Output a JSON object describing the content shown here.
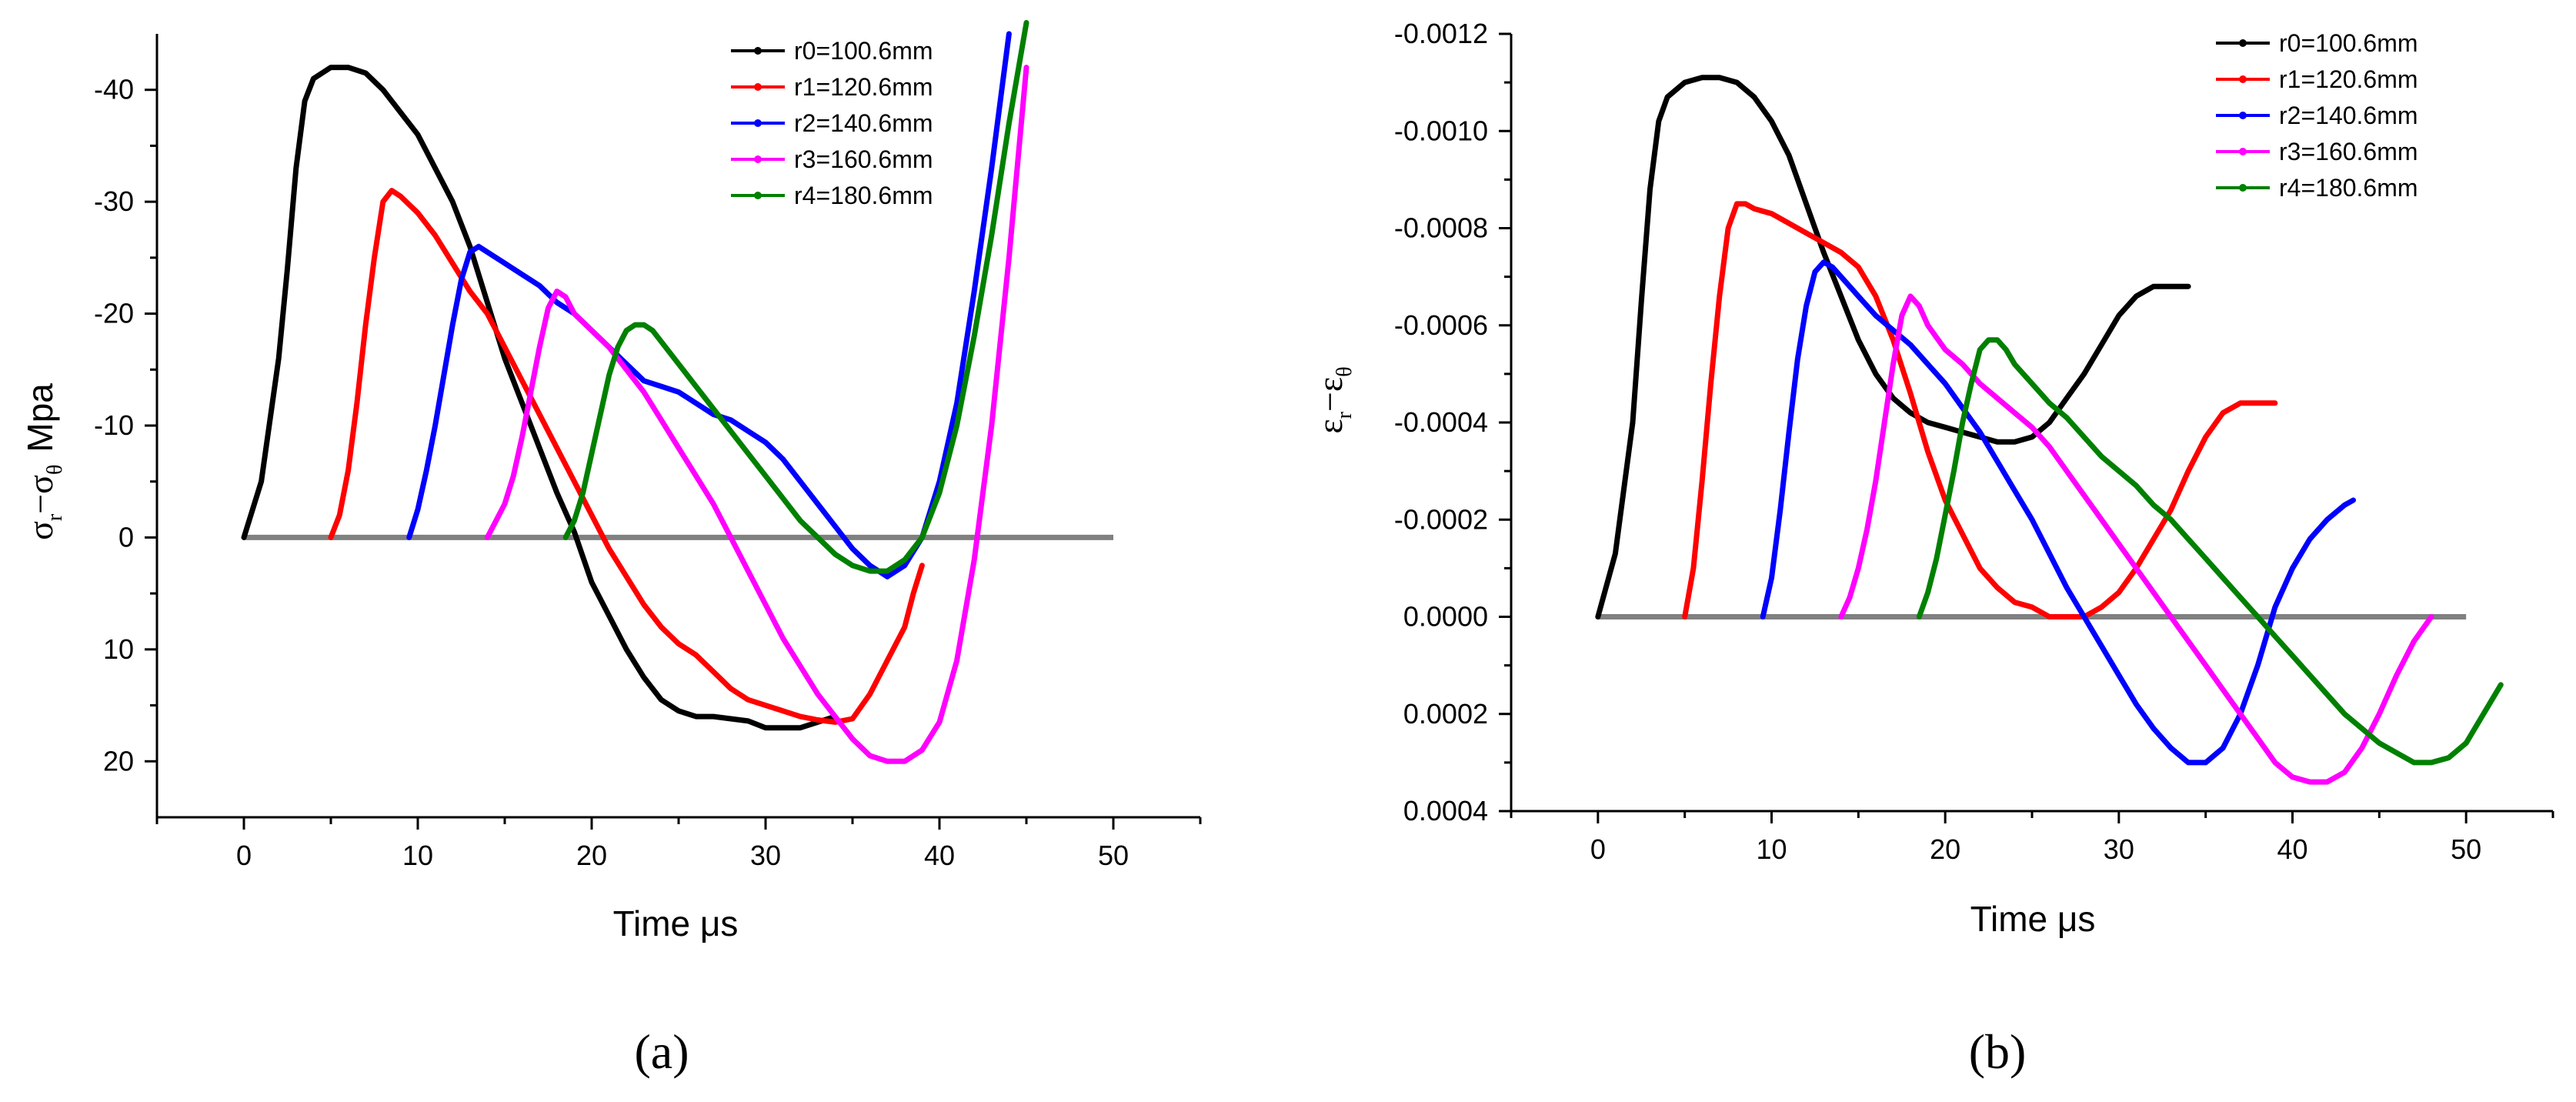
{
  "colors": {
    "r0": "#000000",
    "r1": "#ff0000",
    "r2": "#0000ff",
    "r3": "#ff00ff",
    "r4": "#008000",
    "baseline": "#808080"
  },
  "chart_data": [
    {
      "type": "line",
      "panel_label": "(a)",
      "xlabel": "Time  μs",
      "ylabel": "σr−σθ  Mpa",
      "ylabel_parts": {
        "main1": "σ",
        "sub1": "r",
        "dash": "−",
        "main2": "σ",
        "sub2": "θ",
        "unit": "Mpa"
      },
      "xlim": [
        -5,
        55
      ],
      "ylim": [
        25,
        -45
      ],
      "xticks": [
        0,
        10,
        20,
        30,
        40,
        50
      ],
      "xtick_labels": [
        "0",
        "10",
        "20",
        "30",
        "40",
        "50"
      ],
      "yticks": [
        -40,
        -30,
        -20,
        -10,
        0,
        10,
        20
      ],
      "ytick_labels": [
        "-40",
        "-30",
        "-20",
        "-10",
        "0",
        "10",
        "20"
      ],
      "baseline": {
        "x": [
          0,
          50
        ],
        "y": 0
      },
      "series": [
        {
          "name": "r0=100.6mm",
          "color": "#000000",
          "x": [
            0,
            1,
            2,
            2.5,
            3,
            3.5,
            4,
            5,
            6,
            7,
            8,
            9,
            10,
            11,
            12,
            13,
            14,
            15,
            16,
            17,
            18,
            19,
            20,
            21,
            22,
            23,
            24,
            25,
            26,
            27,
            28,
            29,
            30,
            31,
            32,
            33,
            34
          ],
          "y": [
            0,
            -5,
            -16,
            -24,
            -33,
            -39,
            -41,
            -42,
            -42,
            -41.5,
            -40,
            -38,
            -36,
            -33,
            -30,
            -26,
            -21,
            -16,
            -12,
            -8,
            -4,
            -0.5,
            4,
            7,
            10,
            12.5,
            14.5,
            15.5,
            16,
            16,
            16.2,
            16.4,
            17,
            17,
            17,
            16.5,
            16
          ]
        },
        {
          "name": "r1=120.6mm",
          "color": "#ff0000",
          "x": [
            5,
            5.5,
            6,
            6.5,
            7,
            7.5,
            8,
            8.5,
            9,
            10,
            11,
            12,
            13,
            14,
            15,
            16,
            17,
            18,
            19,
            20,
            21,
            22,
            23,
            24,
            25,
            26,
            27,
            28,
            29,
            30,
            31,
            32,
            33,
            34,
            35,
            36,
            37,
            38,
            38.5,
            39
          ],
          "y": [
            0,
            -2,
            -6,
            -12,
            -19,
            -25,
            -30,
            -31,
            -30.5,
            -29,
            -27,
            -24.5,
            -22,
            -20,
            -17,
            -14,
            -11,
            -8,
            -5,
            -2,
            1,
            3.5,
            6,
            8,
            9.5,
            10.5,
            12,
            13.5,
            14.5,
            15,
            15.5,
            16,
            16.3,
            16.5,
            16.2,
            14,
            11,
            8,
            5,
            2.5
          ]
        },
        {
          "name": "r2=140.6mm",
          "color": "#0000ff",
          "x": [
            9.5,
            10,
            10.5,
            11,
            11.5,
            12,
            12.5,
            13,
            13.5,
            14,
            15,
            16,
            17,
            18,
            19,
            20,
            21,
            22,
            23,
            24,
            25,
            26,
            27,
            28,
            29,
            30,
            31,
            32,
            33,
            34,
            35,
            36,
            37,
            38,
            39,
            40,
            41,
            42,
            43,
            44
          ],
          "y": [
            0,
            -2.5,
            -6,
            -10,
            -14.5,
            -19,
            -23,
            -25.5,
            -26,
            -25.5,
            -24.5,
            -23.5,
            -22.5,
            -21,
            -20,
            -18.5,
            -17,
            -15.5,
            -14,
            -13.5,
            -13,
            -12,
            -11,
            -10.5,
            -9.5,
            -8.5,
            -7,
            -5,
            -3,
            -1,
            1,
            2.5,
            3.5,
            2.5,
            0,
            -5,
            -12,
            -22,
            -33,
            -45
          ]
        },
        {
          "name": "r3=160.6mm",
          "color": "#ff00ff",
          "x": [
            14,
            14.5,
            15,
            15.5,
            16,
            16.5,
            17,
            17.5,
            18,
            18.5,
            19,
            20,
            21,
            22,
            23,
            24,
            25,
            26,
            27,
            28,
            29,
            30,
            31,
            32,
            33,
            34,
            35,
            36,
            37,
            38,
            39,
            40,
            41,
            42,
            43,
            44,
            45
          ],
          "y": [
            0,
            -1.5,
            -3,
            -5.5,
            -9,
            -13,
            -17,
            -20.5,
            -22,
            -21.5,
            -20,
            -18.5,
            -17,
            -15,
            -13,
            -10.5,
            -8,
            -5.5,
            -3,
            0,
            3,
            6,
            9,
            11.5,
            14,
            16,
            18,
            19.5,
            20,
            20,
            19,
            16.5,
            11,
            2,
            -10,
            -25,
            -42
          ]
        },
        {
          "name": "r4=180.6mm",
          "color": "#008000",
          "x": [
            18.5,
            19,
            19.5,
            20,
            20.5,
            21,
            21.5,
            22,
            22.5,
            23,
            23.5,
            24,
            25,
            26,
            27,
            28,
            29,
            30,
            31,
            32,
            33,
            34,
            35,
            36,
            37,
            38,
            39,
            40,
            41,
            42,
            43,
            44,
            45
          ],
          "y": [
            0,
            -1.5,
            -4,
            -7.5,
            -11,
            -14.5,
            -17,
            -18.5,
            -19,
            -19,
            -18.5,
            -17.5,
            -15.5,
            -13.5,
            -11.5,
            -9.5,
            -7.5,
            -5.5,
            -3.5,
            -1.5,
            0,
            1.5,
            2.5,
            3,
            3,
            2,
            0,
            -4,
            -10,
            -18,
            -27,
            -37,
            -46
          ]
        }
      ]
    },
    {
      "type": "line",
      "panel_label": "(b)",
      "xlabel": "Time  μs",
      "ylabel": "εr−εθ",
      "ylabel_parts": {
        "main1": "ε",
        "sub1": "r",
        "dash": "−",
        "main2": "ε",
        "sub2": "θ",
        "unit": ""
      },
      "xlim": [
        -5,
        55
      ],
      "ylim": [
        0.0004,
        -0.0012
      ],
      "xticks": [
        0,
        10,
        20,
        30,
        40,
        50
      ],
      "xtick_labels": [
        "0",
        "10",
        "20",
        "30",
        "40",
        "50"
      ],
      "yticks": [
        -0.0012,
        -0.001,
        -0.0008,
        -0.0006,
        -0.0004,
        -0.0002,
        0,
        0.0002,
        0.0004
      ],
      "ytick_labels": [
        "-0.0012",
        "-0.0010",
        "-0.0008",
        "-0.0006",
        "-0.0004",
        "-0.0002",
        "0.0000",
        "0.0002",
        "0.0004"
      ],
      "baseline": {
        "x": [
          0,
          50
        ],
        "y": 0
      },
      "series": [
        {
          "name": "r0=100.6mm",
          "color": "#000000",
          "x": [
            0,
            1,
            2,
            2.5,
            3,
            3.5,
            4,
            5,
            6,
            7,
            8,
            9,
            10,
            11,
            12,
            13,
            14,
            15,
            16,
            17,
            18,
            19,
            20,
            21,
            22,
            23,
            24,
            25,
            26,
            27,
            28,
            29,
            30,
            31,
            32,
            33,
            34
          ],
          "y": [
            0,
            -0.00013,
            -0.0004,
            -0.00065,
            -0.00088,
            -0.00102,
            -0.00107,
            -0.0011,
            -0.00111,
            -0.00111,
            -0.0011,
            -0.00107,
            -0.00102,
            -0.00095,
            -0.00085,
            -0.00075,
            -0.00066,
            -0.00057,
            -0.0005,
            -0.00045,
            -0.00042,
            -0.0004,
            -0.00039,
            -0.00038,
            -0.00037,
            -0.00036,
            -0.00036,
            -0.00037,
            -0.0004,
            -0.00045,
            -0.0005,
            -0.00056,
            -0.00062,
            -0.00066,
            -0.00068,
            -0.00068,
            -0.00068
          ]
        },
        {
          "name": "r1=120.6mm",
          "color": "#ff0000",
          "x": [
            5,
            5.5,
            6,
            6.5,
            7,
            7.5,
            8,
            8.5,
            9,
            10,
            11,
            12,
            13,
            14,
            15,
            16,
            17,
            18,
            19,
            20,
            21,
            22,
            23,
            24,
            25,
            26,
            27,
            28,
            29,
            30,
            31,
            32,
            33,
            34,
            35,
            36,
            37,
            38,
            39
          ],
          "y": [
            0,
            -0.0001,
            -0.00028,
            -0.00048,
            -0.00066,
            -0.0008,
            -0.00085,
            -0.00085,
            -0.00084,
            -0.00083,
            -0.00081,
            -0.00079,
            -0.00077,
            -0.00075,
            -0.00072,
            -0.00066,
            -0.00057,
            -0.00046,
            -0.00034,
            -0.00024,
            -0.00017,
            -0.0001,
            -6e-05,
            -3e-05,
            -2e-05,
            0,
            0,
            0,
            -2e-05,
            -5e-05,
            -0.0001,
            -0.00016,
            -0.00022,
            -0.0003,
            -0.00037,
            -0.00042,
            -0.00044,
            -0.00044,
            -0.00044
          ]
        },
        {
          "name": "r2=140.6mm",
          "color": "#0000ff",
          "x": [
            9.5,
            10,
            10.5,
            11,
            11.5,
            12,
            12.5,
            13,
            13.5,
            14,
            15,
            16,
            17,
            18,
            19,
            20,
            21,
            22,
            23,
            24,
            25,
            26,
            27,
            28,
            29,
            30,
            31,
            32,
            33,
            34,
            35,
            36,
            37,
            38,
            39,
            40,
            41,
            42,
            43,
            43.5
          ],
          "y": [
            0,
            -8e-05,
            -0.00022,
            -0.00038,
            -0.00053,
            -0.00064,
            -0.00071,
            -0.00073,
            -0.00072,
            -0.0007,
            -0.00066,
            -0.00062,
            -0.00059,
            -0.00056,
            -0.00052,
            -0.00048,
            -0.00043,
            -0.00038,
            -0.00032,
            -0.00026,
            -0.0002,
            -0.00013,
            -6e-05,
            0,
            6e-05,
            0.00012,
            0.00018,
            0.00023,
            0.00027,
            0.0003,
            0.0003,
            0.00027,
            0.0002,
            0.0001,
            -2e-05,
            -0.0001,
            -0.00016,
            -0.0002,
            -0.00023,
            -0.00024
          ]
        },
        {
          "name": "r3=160.6mm",
          "color": "#ff00ff",
          "x": [
            14,
            14.5,
            15,
            15.5,
            16,
            16.5,
            17,
            17.5,
            18,
            18.5,
            19,
            20,
            21,
            22,
            23,
            24,
            25,
            26,
            27,
            28,
            29,
            30,
            31,
            32,
            33,
            34,
            35,
            36,
            37,
            38,
            39,
            40,
            41,
            42,
            43,
            44,
            45,
            46,
            47,
            48
          ],
          "y": [
            0,
            -4e-05,
            -0.0001,
            -0.00018,
            -0.00028,
            -0.0004,
            -0.00052,
            -0.00062,
            -0.00066,
            -0.00064,
            -0.0006,
            -0.00055,
            -0.00052,
            -0.00048,
            -0.00045,
            -0.00042,
            -0.00039,
            -0.00035,
            -0.0003,
            -0.00025,
            -0.0002,
            -0.00015,
            -0.0001,
            -5e-05,
            0,
            5e-05,
            0.0001,
            0.00015,
            0.0002,
            0.00025,
            0.0003,
            0.00033,
            0.00034,
            0.00034,
            0.00032,
            0.00027,
            0.0002,
            0.00012,
            5e-05,
            0
          ]
        },
        {
          "name": "r4=180.6mm",
          "color": "#008000",
          "x": [
            18.5,
            19,
            19.5,
            20,
            20.5,
            21,
            21.5,
            22,
            22.5,
            23,
            23.5,
            24,
            25,
            26,
            27,
            28,
            29,
            30,
            31,
            32,
            33,
            34,
            35,
            36,
            37,
            38,
            39,
            40,
            41,
            42,
            43,
            44,
            45,
            46,
            47,
            48,
            49,
            50,
            51,
            52
          ],
          "y": [
            0,
            -5e-05,
            -0.00012,
            -0.00021,
            -0.0003,
            -0.0004,
            -0.00048,
            -0.00055,
            -0.00057,
            -0.00057,
            -0.00055,
            -0.00052,
            -0.00048,
            -0.00044,
            -0.00041,
            -0.00037,
            -0.00033,
            -0.0003,
            -0.00027,
            -0.00023,
            -0.0002,
            -0.00016,
            -0.00012,
            -8e-05,
            -4e-05,
            0,
            4e-05,
            8e-05,
            0.00012,
            0.00016,
            0.0002,
            0.00023,
            0.00026,
            0.00028,
            0.0003,
            0.0003,
            0.00029,
            0.00026,
            0.0002,
            0.00014
          ]
        }
      ]
    }
  ]
}
